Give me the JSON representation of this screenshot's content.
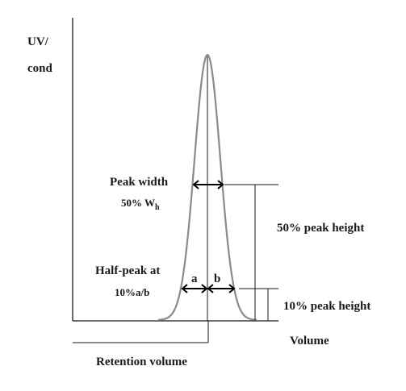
{
  "axis": {
    "y_label_line1": "UV/",
    "y_label_line2": "cond",
    "x_label": "Volume",
    "retention_label": "Retention volume"
  },
  "annotations": {
    "peak_width_line1": "Peak width",
    "peak_width_line2_main": "50% W",
    "peak_width_line2_sub": "h",
    "half_peak_line1": "Half-peak at",
    "half_peak_line2": "10%a/b",
    "a_label": "a",
    "b_label": "b",
    "height_50": "50% peak height",
    "height_10": "10% peak height"
  }
}
